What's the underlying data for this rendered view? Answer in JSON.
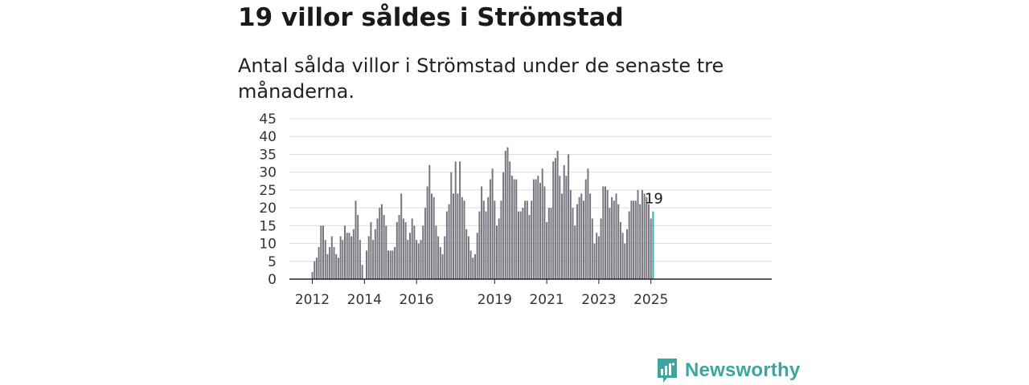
{
  "header": {
    "title": "19 villor såldes i Strömstad",
    "subtitle": "Antal sålda villor i Strömstad under de senaste tre månaderna."
  },
  "brand": {
    "name": "Newsworthy",
    "icon": "bar-chart-logo-icon"
  },
  "colors": {
    "bar": "#77757e",
    "highlight": "#2bb3ad",
    "grid": "#dcdcdc",
    "axis": "#222222"
  },
  "chart_data": {
    "type": "bar",
    "title": "",
    "xlabel": "",
    "ylabel": "",
    "ylim": [
      0,
      45
    ],
    "yticks": [
      0,
      5,
      10,
      15,
      20,
      25,
      30,
      35,
      40,
      45
    ],
    "grid": true,
    "x_start": "2012-01",
    "x_end": "2025-03",
    "xtick_labels": [
      {
        "label": "2012",
        "year": 2012
      },
      {
        "label": "2014",
        "year": 2014
      },
      {
        "label": "2016",
        "year": 2016
      },
      {
        "label": "2019",
        "year": 2019
      },
      {
        "label": "2021",
        "year": 2021
      },
      {
        "label": "2023",
        "year": 2023
      },
      {
        "label": "2025",
        "year": 2025
      }
    ],
    "series": [
      {
        "values": [
          2,
          5,
          6,
          9,
          15,
          15,
          11,
          7,
          9,
          12,
          9,
          7,
          6,
          12,
          11,
          15,
          13,
          13,
          12,
          14,
          22,
          18,
          11,
          4,
          0,
          8,
          12,
          16,
          11,
          14,
          17,
          20,
          21,
          18,
          15,
          8,
          8,
          8,
          9,
          16,
          18,
          24,
          17,
          16,
          11,
          13,
          17,
          15,
          11,
          10,
          11,
          15,
          20,
          26,
          32,
          24,
          23,
          15,
          12,
          9,
          7,
          12,
          19,
          21,
          30,
          24,
          33,
          24,
          33,
          23,
          22,
          14,
          12,
          8,
          6,
          7,
          13,
          19,
          26,
          22,
          19,
          23,
          28,
          31,
          22,
          15,
          17,
          22,
          30,
          36,
          37,
          33,
          29,
          28,
          28,
          19,
          19,
          20,
          22,
          22,
          18,
          22,
          28,
          28,
          29,
          27,
          31,
          26,
          16,
          20,
          20,
          33,
          34,
          36,
          29,
          24,
          32,
          29,
          35,
          25,
          20,
          15,
          21,
          23,
          24,
          22,
          28,
          31,
          24,
          17,
          10,
          13,
          12,
          17,
          26,
          26,
          25,
          20,
          23,
          22,
          24,
          21,
          16,
          13,
          10,
          14,
          19,
          22,
          22,
          22,
          25,
          21,
          25,
          24,
          23,
          21,
          17,
          19
        ]
      }
    ],
    "last_value_label": "19"
  }
}
